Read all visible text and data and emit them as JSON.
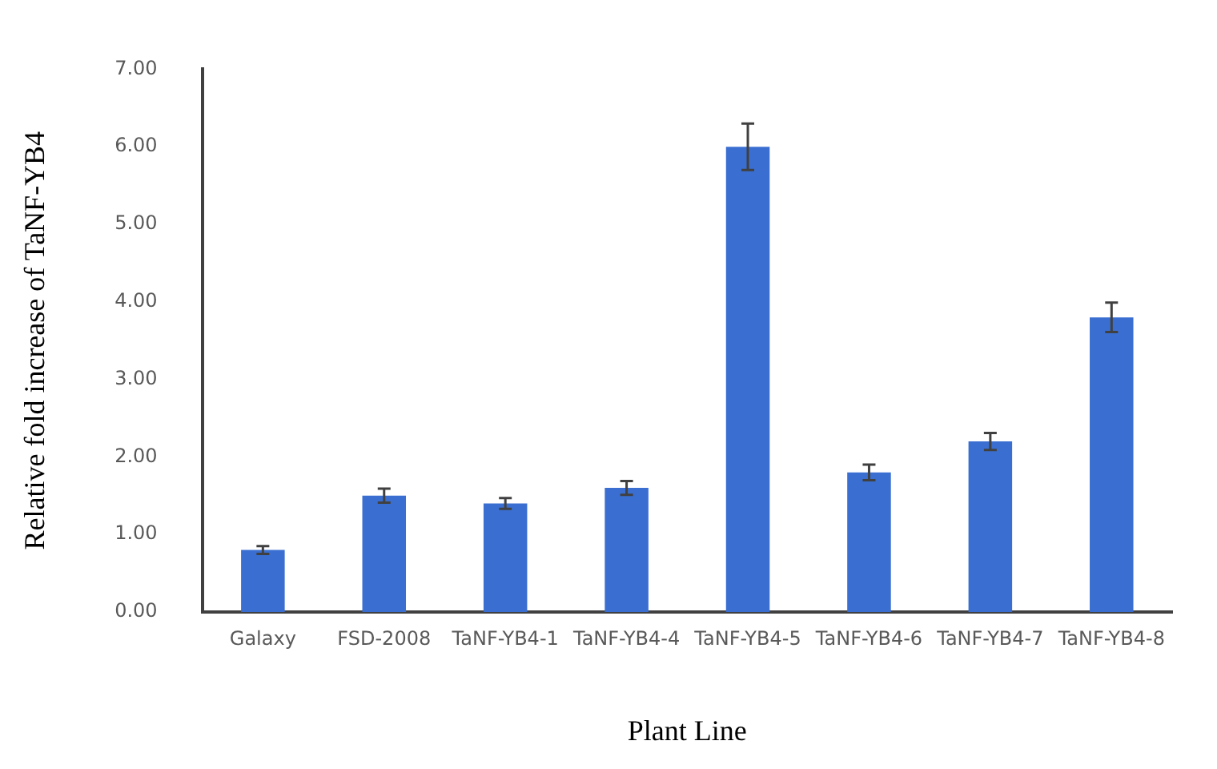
{
  "chart_data": {
    "type": "bar",
    "xlabel": "Plant Line",
    "ylabel": "Relative fold increase of TaNF-YB4",
    "categories": [
      "Galaxy",
      "FSD-2008",
      "TaNF-YB4-1",
      "TaNF-YB4-4",
      "TaNF-YB4-5",
      "TaNF-YB4-6",
      "TaNF-YB4-7",
      "TaNF-YB4-8"
    ],
    "values": [
      0.8,
      1.5,
      1.4,
      1.6,
      6.0,
      1.8,
      2.2,
      3.8
    ],
    "errors": [
      0.05,
      0.09,
      0.07,
      0.09,
      0.3,
      0.1,
      0.11,
      0.19
    ],
    "color": "#3a6fd1",
    "ylim": [
      0,
      7
    ],
    "yticks": [
      {
        "value": 0,
        "label": "0.00"
      },
      {
        "value": 1,
        "label": "1.00"
      },
      {
        "value": 2,
        "label": "2.00"
      },
      {
        "value": 3,
        "label": "3.00"
      },
      {
        "value": 4,
        "label": "4.00"
      },
      {
        "value": 5,
        "label": "5.00"
      },
      {
        "value": 6,
        "label": "6.00"
      },
      {
        "value": 7,
        "label": "7.00"
      }
    ],
    "grid": false,
    "legend": false
  }
}
